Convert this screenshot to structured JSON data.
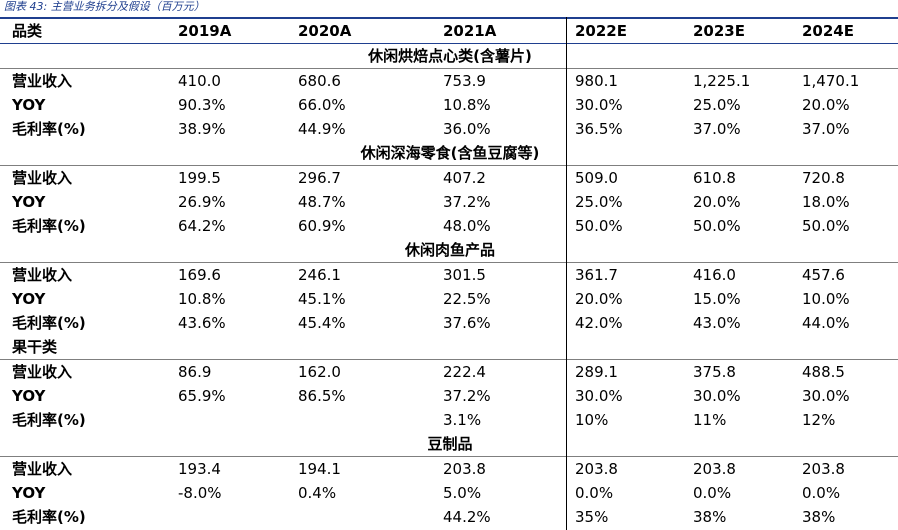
{
  "caption": "图表 43: 主营业务拆分及假设（百万元）",
  "header": {
    "label": "品类",
    "years": [
      "2019A",
      "2020A",
      "2021A",
      "2022E",
      "2023E",
      "2024E"
    ]
  },
  "sections": [
    {
      "title": "休闲烘焙点心类(含薯片)",
      "rows": [
        {
          "label": "营业收入",
          "values": [
            "410.0",
            "680.6",
            "753.9",
            "980.1",
            "1,225.1",
            "1,470.1"
          ]
        },
        {
          "label": "YOY",
          "values": [
            "90.3%",
            "66.0%",
            "10.8%",
            "30.0%",
            "25.0%",
            "20.0%"
          ]
        },
        {
          "label": "毛利率(%)",
          "values": [
            "38.9%",
            "44.9%",
            "36.0%",
            "36.5%",
            "37.0%",
            "37.0%"
          ]
        }
      ]
    },
    {
      "title": "休闲深海零食(含鱼豆腐等)",
      "rows": [
        {
          "label": "营业收入",
          "values": [
            "199.5",
            "296.7",
            "407.2",
            "509.0",
            "610.8",
            "720.8"
          ]
        },
        {
          "label": "YOY",
          "values": [
            "26.9%",
            "48.7%",
            "37.2%",
            "25.0%",
            "20.0%",
            "18.0%"
          ]
        },
        {
          "label": "毛利率(%)",
          "values": [
            "64.2%",
            "60.9%",
            "48.0%",
            "50.0%",
            "50.0%",
            "50.0%"
          ]
        }
      ]
    },
    {
      "title": "休闲肉鱼产品",
      "rows": [
        {
          "label": "营业收入",
          "values": [
            "169.6",
            "246.1",
            "301.5",
            "361.7",
            "416.0",
            "457.6"
          ]
        },
        {
          "label": "YOY",
          "values": [
            "10.8%",
            "45.1%",
            "22.5%",
            "20.0%",
            "15.0%",
            "10.0%"
          ]
        },
        {
          "label": "毛利率(%)",
          "values": [
            "43.6%",
            "45.4%",
            "37.6%",
            "42.0%",
            "43.0%",
            "44.0%"
          ]
        }
      ]
    },
    {
      "title": "果干类",
      "rows": [
        {
          "label": "营业收入",
          "values": [
            "86.9",
            "162.0",
            "222.4",
            "289.1",
            "375.8",
            "488.5"
          ]
        },
        {
          "label": "YOY",
          "values": [
            "65.9%",
            "86.5%",
            "37.2%",
            "30.0%",
            "30.0%",
            "30.0%"
          ]
        },
        {
          "label": "毛利率(%)",
          "values": [
            "",
            "",
            "3.1%",
            "10%",
            "11%",
            "12%"
          ]
        }
      ]
    },
    {
      "title": "豆制品",
      "rows": [
        {
          "label": "营业收入",
          "values": [
            "193.4",
            "194.1",
            "203.8",
            "203.8",
            "203.8",
            "203.8"
          ]
        },
        {
          "label": "YOY",
          "values": [
            "-8.0%",
            "0.4%",
            "5.0%",
            "0.0%",
            "0.0%",
            "0.0%"
          ]
        },
        {
          "label": "毛利率(%)",
          "values": [
            "",
            "",
            "44.2%",
            "35%",
            "38%",
            "38%"
          ]
        }
      ]
    }
  ]
}
